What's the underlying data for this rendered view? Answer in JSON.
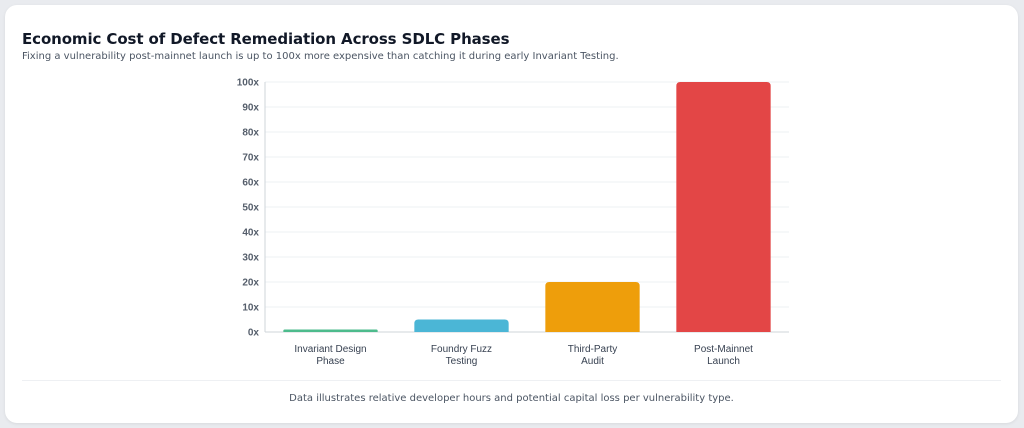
{
  "title": "Economic Cost of Defect Remediation Across SDLC Phases",
  "subtitle": "Fixing a vulnerability post-mainnet launch is up to 100x more expensive than catching it during early Invariant Testing.",
  "footer": "Data illustrates relative developer hours and potential capital loss per vulnerability type.",
  "chart_data": {
    "type": "bar",
    "categories": [
      [
        "Invariant Design",
        "Phase"
      ],
      [
        "Foundry Fuzz",
        "Testing"
      ],
      [
        "Third-Party",
        "Audit"
      ],
      [
        "Post-Mainnet",
        "Launch"
      ]
    ],
    "values": [
      1,
      5,
      20,
      100
    ],
    "colors": [
      "#4dbb8c",
      "#4bb6d6",
      "#ee9e0b",
      "#e34646"
    ],
    "yticks": [
      "0x",
      "10x",
      "20x",
      "30x",
      "40x",
      "50x",
      "60x",
      "70x",
      "80x",
      "90x",
      "100x"
    ],
    "ylim": [
      0,
      100
    ],
    "grid": true,
    "xlabel": "",
    "ylabel": ""
  }
}
